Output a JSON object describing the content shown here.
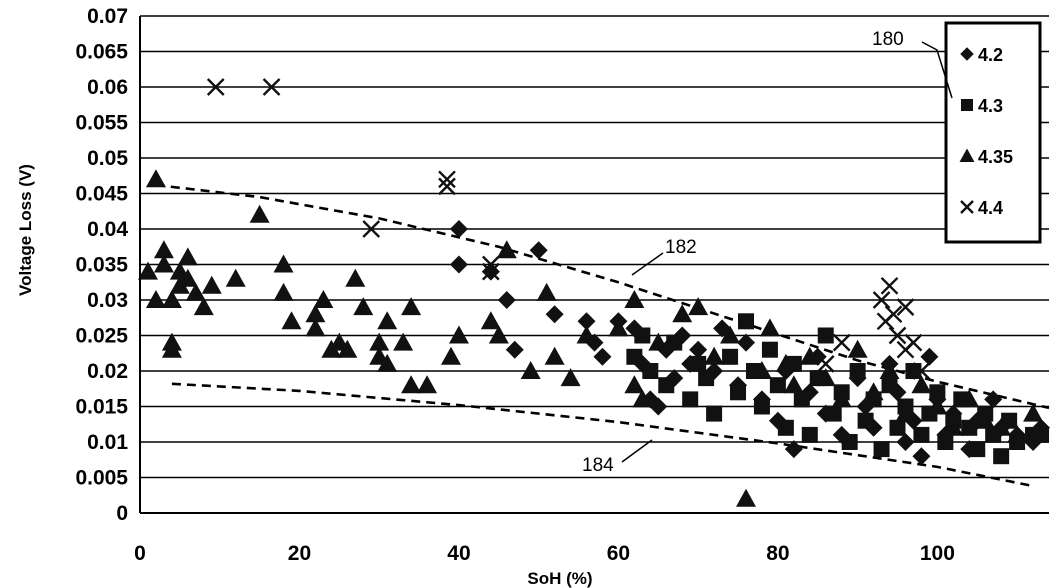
{
  "chart_data": {
    "type": "scatter",
    "xlabel": "SoH (%)",
    "ylabel": "Voltage Loss (V)",
    "xlim": [
      0,
      114
    ],
    "ylim": [
      0,
      0.07
    ],
    "x_ticks": [
      "0",
      "20",
      "40",
      "60",
      "80",
      "100"
    ],
    "x_tick_values": [
      0,
      20,
      40,
      60,
      80,
      100
    ],
    "y_ticks": [
      "0",
      "0.005",
      "0.01",
      "0.015",
      "0.02",
      "0.025",
      "0.03",
      "0.035",
      "0.04",
      "0.045",
      "0.05",
      "0.055",
      "0.06",
      "0.065",
      "0.07"
    ],
    "y_tick_values": [
      0,
      0.005,
      0.01,
      0.015,
      0.02,
      0.025,
      0.03,
      0.035,
      0.04,
      0.045,
      0.05,
      0.055,
      0.06,
      0.065,
      0.07
    ],
    "grid": "horizontal",
    "legend_position": "top-right",
    "series": [
      {
        "name": "4.2",
        "marker": "diamond",
        "points": [
          [
            40,
            0.04
          ],
          [
            40,
            0.035
          ],
          [
            44,
            0.034
          ],
          [
            46,
            0.03
          ],
          [
            47,
            0.023
          ],
          [
            50,
            0.037
          ],
          [
            52,
            0.028
          ],
          [
            56,
            0.027
          ],
          [
            57,
            0.024
          ],
          [
            58,
            0.022
          ],
          [
            60,
            0.027
          ],
          [
            62,
            0.026
          ],
          [
            63,
            0.021
          ],
          [
            64,
            0.016
          ],
          [
            65,
            0.015
          ],
          [
            66,
            0.023
          ],
          [
            67,
            0.019
          ],
          [
            68,
            0.025
          ],
          [
            69,
            0.021
          ],
          [
            70,
            0.023
          ],
          [
            72,
            0.02
          ],
          [
            73,
            0.026
          ],
          [
            75,
            0.018
          ],
          [
            76,
            0.024
          ],
          [
            78,
            0.016
          ],
          [
            80,
            0.013
          ],
          [
            81,
            0.02
          ],
          [
            82,
            0.009
          ],
          [
            84,
            0.017
          ],
          [
            85,
            0.022
          ],
          [
            86,
            0.014
          ],
          [
            88,
            0.011
          ],
          [
            90,
            0.019
          ],
          [
            91,
            0.015
          ],
          [
            92,
            0.012
          ],
          [
            94,
            0.021
          ],
          [
            95,
            0.017
          ],
          [
            96,
            0.01
          ],
          [
            97,
            0.013
          ],
          [
            98,
            0.008
          ],
          [
            99,
            0.022
          ],
          [
            100,
            0.016
          ],
          [
            101,
            0.011
          ],
          [
            102,
            0.014
          ],
          [
            104,
            0.009
          ],
          [
            105,
            0.013
          ],
          [
            107,
            0.016
          ],
          [
            108,
            0.012
          ],
          [
            110,
            0.011
          ],
          [
            112,
            0.01
          ],
          [
            113,
            0.012
          ]
        ]
      },
      {
        "name": "4.3",
        "marker": "square",
        "points": [
          [
            62,
            0.022
          ],
          [
            63,
            0.025
          ],
          [
            64,
            0.02
          ],
          [
            66,
            0.018
          ],
          [
            67,
            0.024
          ],
          [
            69,
            0.016
          ],
          [
            70,
            0.021
          ],
          [
            71,
            0.019
          ],
          [
            72,
            0.014
          ],
          [
            74,
            0.022
          ],
          [
            75,
            0.017
          ],
          [
            76,
            0.027
          ],
          [
            77,
            0.02
          ],
          [
            78,
            0.015
          ],
          [
            79,
            0.023
          ],
          [
            80,
            0.018
          ],
          [
            81,
            0.012
          ],
          [
            82,
            0.021
          ],
          [
            83,
            0.016
          ],
          [
            84,
            0.011
          ],
          [
            85,
            0.019
          ],
          [
            86,
            0.025
          ],
          [
            87,
            0.014
          ],
          [
            88,
            0.017
          ],
          [
            89,
            0.01
          ],
          [
            90,
            0.02
          ],
          [
            91,
            0.013
          ],
          [
            92,
            0.016
          ],
          [
            93,
            0.009
          ],
          [
            94,
            0.018
          ],
          [
            95,
            0.012
          ],
          [
            96,
            0.015
          ],
          [
            97,
            0.02
          ],
          [
            98,
            0.011
          ],
          [
            99,
            0.014
          ],
          [
            100,
            0.017
          ],
          [
            101,
            0.01
          ],
          [
            102,
            0.013
          ],
          [
            103,
            0.016
          ],
          [
            104,
            0.012
          ],
          [
            105,
            0.009
          ],
          [
            106,
            0.014
          ],
          [
            107,
            0.011
          ],
          [
            108,
            0.008
          ],
          [
            109,
            0.013
          ],
          [
            110,
            0.01
          ],
          [
            112,
            0.011
          ],
          [
            113,
            0.011
          ]
        ]
      },
      {
        "name": "4.35",
        "marker": "triangle",
        "points": [
          [
            1,
            0.034
          ],
          [
            2,
            0.047
          ],
          [
            2,
            0.03
          ],
          [
            3,
            0.037
          ],
          [
            3,
            0.035
          ],
          [
            4,
            0.024
          ],
          [
            4,
            0.023
          ],
          [
            4,
            0.03
          ],
          [
            5,
            0.034
          ],
          [
            5,
            0.032
          ],
          [
            6,
            0.036
          ],
          [
            6,
            0.033
          ],
          [
            7,
            0.031
          ],
          [
            8,
            0.029
          ],
          [
            9,
            0.032
          ],
          [
            12,
            0.033
          ],
          [
            15,
            0.042
          ],
          [
            18,
            0.035
          ],
          [
            18,
            0.031
          ],
          [
            19,
            0.027
          ],
          [
            22,
            0.026
          ],
          [
            22,
            0.028
          ],
          [
            23,
            0.03
          ],
          [
            24,
            0.023
          ],
          [
            25,
            0.024
          ],
          [
            26,
            0.023
          ],
          [
            27,
            0.033
          ],
          [
            28,
            0.029
          ],
          [
            30,
            0.022
          ],
          [
            30,
            0.024
          ],
          [
            31,
            0.027
          ],
          [
            31,
            0.021
          ],
          [
            33,
            0.024
          ],
          [
            34,
            0.029
          ],
          [
            34,
            0.018
          ],
          [
            36,
            0.018
          ],
          [
            39,
            0.022
          ],
          [
            40,
            0.025
          ],
          [
            44,
            0.027
          ],
          [
            45,
            0.025
          ],
          [
            46,
            0.037
          ],
          [
            49,
            0.02
          ],
          [
            51,
            0.031
          ],
          [
            52,
            0.022
          ],
          [
            54,
            0.019
          ],
          [
            56,
            0.025
          ],
          [
            60,
            0.026
          ],
          [
            62,
            0.03
          ],
          [
            62,
            0.018
          ],
          [
            63,
            0.016
          ],
          [
            65,
            0.024
          ],
          [
            68,
            0.028
          ],
          [
            70,
            0.029
          ],
          [
            72,
            0.022
          ],
          [
            74,
            0.025
          ],
          [
            76,
            0.002
          ],
          [
            78,
            0.02
          ],
          [
            79,
            0.026
          ],
          [
            81,
            0.021
          ],
          [
            82,
            0.018
          ],
          [
            84,
            0.022
          ],
          [
            86,
            0.019
          ],
          [
            88,
            0.016
          ],
          [
            90,
            0.023
          ],
          [
            92,
            0.017
          ],
          [
            94,
            0.02
          ],
          [
            96,
            0.014
          ],
          [
            98,
            0.018
          ],
          [
            100,
            0.015
          ],
          [
            102,
            0.012
          ],
          [
            104,
            0.016
          ],
          [
            106,
            0.013
          ],
          [
            108,
            0.012
          ],
          [
            110,
            0.011
          ],
          [
            112,
            0.014
          ]
        ]
      },
      {
        "name": "4.4",
        "marker": "x",
        "points": [
          [
            9.5,
            0.06
          ],
          [
            16.5,
            0.06
          ],
          [
            29,
            0.04
          ],
          [
            38.5,
            0.047
          ],
          [
            38.5,
            0.046
          ],
          [
            44,
            0.035
          ],
          [
            44,
            0.034
          ],
          [
            86,
            0.021
          ],
          [
            88,
            0.024
          ],
          [
            93,
            0.03
          ],
          [
            93.5,
            0.027
          ],
          [
            94,
            0.032
          ],
          [
            94.5,
            0.028
          ],
          [
            95,
            0.025
          ],
          [
            96,
            0.029
          ],
          [
            96,
            0.023
          ],
          [
            97,
            0.024
          ],
          [
            98,
            0.02
          ]
        ]
      }
    ],
    "reference_lines": [
      {
        "label": "182",
        "style": "dashed",
        "points": [
          [
            2,
            0.0462
          ],
          [
            15,
            0.0445
          ],
          [
            30,
            0.0415
          ],
          [
            45,
            0.0375
          ],
          [
            60,
            0.0325
          ],
          [
            75,
            0.027
          ],
          [
            90,
            0.0215
          ],
          [
            100,
            0.0185
          ],
          [
            114,
            0.0148
          ]
        ]
      },
      {
        "label": "184",
        "style": "dashed",
        "points": [
          [
            4,
            0.0182
          ],
          [
            20,
            0.0172
          ],
          [
            40,
            0.0152
          ],
          [
            60,
            0.0128
          ],
          [
            80,
            0.0098
          ],
          [
            100,
            0.0065
          ],
          [
            112,
            0.0038
          ]
        ]
      }
    ],
    "annotations": [
      {
        "label": "180",
        "points_to": "legend"
      },
      {
        "label": "182",
        "points_to": "upper dashed line"
      },
      {
        "label": "184",
        "points_to": "lower dashed line"
      }
    ]
  }
}
